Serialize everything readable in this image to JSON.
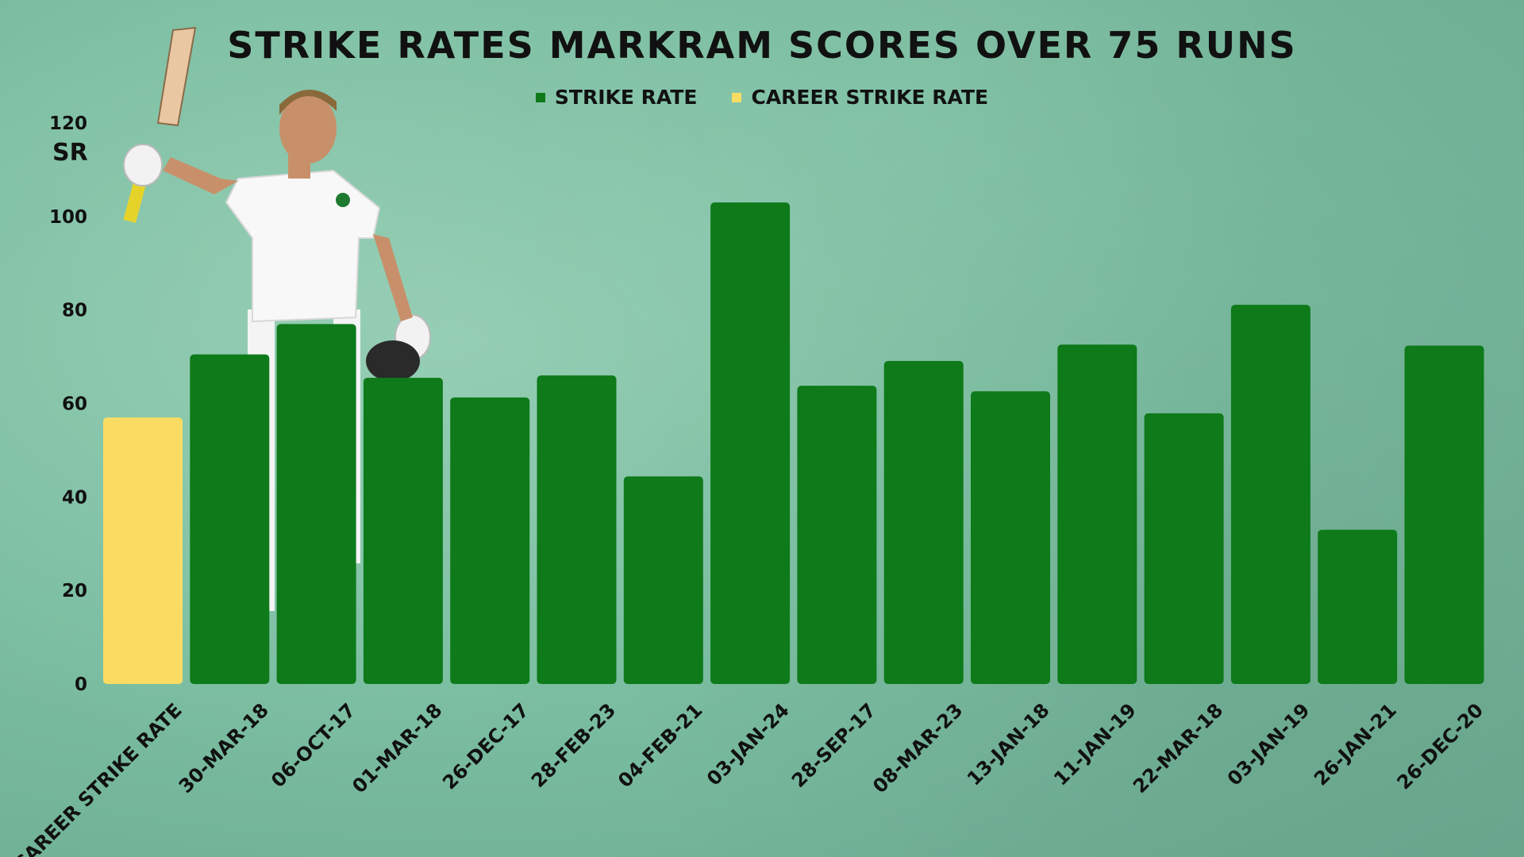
{
  "chart_data": {
    "type": "bar",
    "title": "STRIKE RATES MARKRAM SCORES OVER 75 RUNS",
    "ylabel": "SR",
    "xlabel": "",
    "ylim": [
      0,
      120
    ],
    "yticks": [
      0,
      20,
      40,
      60,
      80,
      100,
      120
    ],
    "grid": false,
    "legend_position": "top-center",
    "legend": [
      {
        "label": "STRIKE RATE",
        "color": "#0e7a1a"
      },
      {
        "label": "CAREER STRIKE RATE",
        "color": "#fbdc63"
      }
    ],
    "categories": [
      "CAREER STRIKE RATE",
      "30-MAR-18",
      "06-OCT-17",
      "01-MAR-18",
      "26-DEC-17",
      "28-FEB-23",
      "04-FEB-21",
      "03-JAN-24",
      "28-SEP-17",
      "08-MAR-23",
      "13-JAN-18",
      "11-JAN-19",
      "22-MAR-18",
      "03-JAN-19",
      "26-JAN-21",
      "26-DEC-20"
    ],
    "values": [
      57,
      70.5,
      77,
      65.5,
      61.3,
      66,
      44.4,
      103,
      63.8,
      69.1,
      62.6,
      72.6,
      57.9,
      81.1,
      33,
      72.4
    ],
    "series_index": [
      1,
      0,
      0,
      0,
      0,
      0,
      0,
      0,
      0,
      0,
      0,
      0,
      0,
      0,
      0,
      0
    ]
  }
}
